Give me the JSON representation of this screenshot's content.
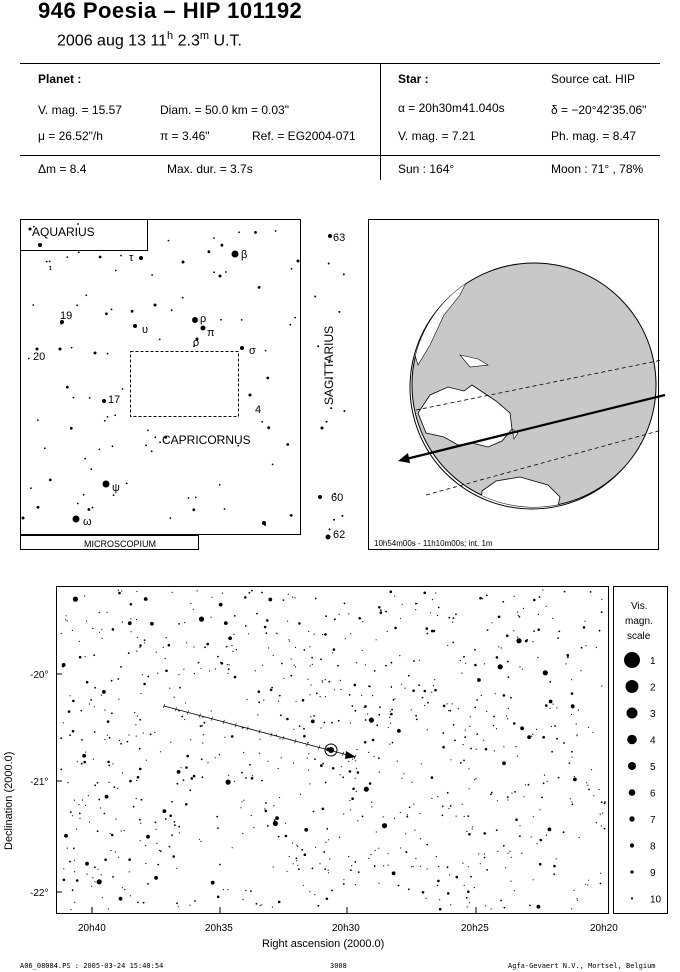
{
  "header": {
    "title": "946 Poesia  –  HIP 101192",
    "date_text": "2006 aug 13  11",
    "hour_sup": "h",
    "minutes": " 2.3",
    "min_sup": "m",
    "ut": " U.T."
  },
  "planet": {
    "heading": "Planet :",
    "vmag": "V. mag. = 15.57",
    "diam": "Diam. = 50.0 km = 0.03\"",
    "mu": "μ = 26.52\"/h",
    "pi": "π =  3.46\"",
    "ref": "Ref. = EG2004-071",
    "dm": "Δm = 8.4",
    "maxdur": "Max. dur. = 3.7s"
  },
  "star": {
    "heading": "Star :",
    "source": "Source cat.  HIP",
    "alpha": "α = 20h30m41.040s",
    "delta": "δ = −20°42'35.06\"",
    "vmag": "V. mag. =  7.21",
    "phmag": "Ph. mag. =  8.47",
    "sun": "Sun : 164°",
    "moon": "Moon :  71° , 78%"
  },
  "constellation_map": {
    "labels": {
      "aquarius": "AQUARIUS",
      "capricornus": "CAPRICORNUS",
      "sagittarius": "SAGITTARIUS",
      "microscopium": "MICROSCOPIUM"
    },
    "star_labels": [
      "β",
      "τ",
      "ρ",
      "π",
      "ο",
      "σ",
      "υ",
      "ψ",
      "ω",
      "19",
      "20",
      "17",
      "4",
      "63",
      "60",
      "62"
    ]
  },
  "globe": {
    "caption": "10h54m00s - 11h10m00s; int.  1m"
  },
  "starchart": {
    "ylabel": "Declination (2000.0)",
    "xlabel": "Right ascension (2000.0)",
    "y_ticks": [
      "-20°",
      "-21°",
      "-22°"
    ],
    "x_ticks": [
      "20h40",
      "20h35",
      "20h30",
      "20h25",
      "20h20"
    ],
    "scale_title": [
      "Vis.",
      "magn.",
      "scale"
    ],
    "scale_values": [
      "1",
      "2",
      "3",
      "4",
      "5",
      "6",
      "7",
      "8",
      "9",
      "10"
    ]
  },
  "footer": {
    "left": "A06_08084.PS : 2005-03-24 15:40:54",
    "center": "3008",
    "right": "Agfa-Gevaert N.V., Mortsel, Belgium"
  }
}
